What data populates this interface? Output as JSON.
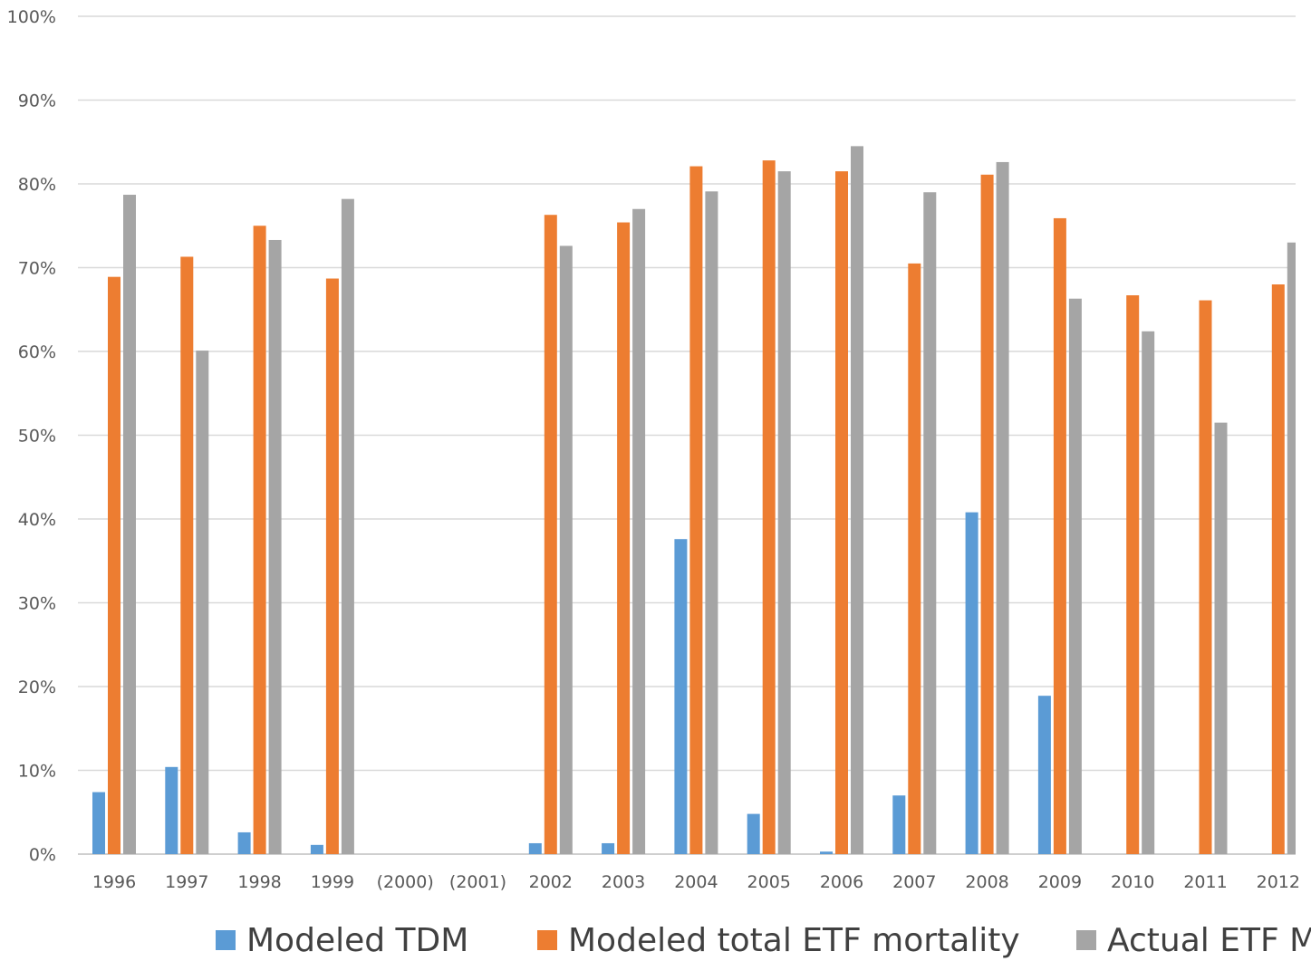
{
  "chart_data": {
    "type": "bar",
    "title": "",
    "xlabel": "",
    "ylabel": "",
    "ylim": [
      0,
      100
    ],
    "ytick_labels": [
      "0%",
      "10%",
      "20%",
      "30%",
      "40%",
      "50%",
      "60%",
      "70%",
      "80%",
      "90%",
      "100%"
    ],
    "categories": [
      "1996",
      "1997",
      "1998",
      "1999",
      "(2000)",
      "(2001)",
      "2002",
      "2003",
      "2004",
      "2005",
      "2006",
      "2007",
      "2008",
      "2009",
      "2010",
      "2011",
      "2012"
    ],
    "series": [
      {
        "name": "Modeled TDM",
        "color": "#5b9bd5",
        "values": [
          7.4,
          10.4,
          2.6,
          1.1,
          null,
          null,
          1.3,
          1.3,
          37.6,
          4.8,
          0.3,
          7.0,
          40.8,
          18.9,
          0,
          0,
          0
        ]
      },
      {
        "name": "Modeled total ETF mortality",
        "color": "#ed7d31",
        "values": [
          68.9,
          71.3,
          75.0,
          68.7,
          null,
          null,
          76.3,
          75.4,
          82.1,
          82.8,
          81.5,
          70.5,
          81.1,
          75.9,
          66.7,
          66.1,
          68.0
        ]
      },
      {
        "name": "Actual ETF M",
        "color": "#a5a5a5",
        "values": [
          78.7,
          60.1,
          73.3,
          78.2,
          null,
          null,
          72.6,
          77.0,
          79.1,
          81.5,
          84.5,
          79.0,
          82.6,
          66.3,
          62.4,
          51.5,
          73.0
        ]
      }
    ],
    "grid": true,
    "legend_position": "bottom"
  }
}
